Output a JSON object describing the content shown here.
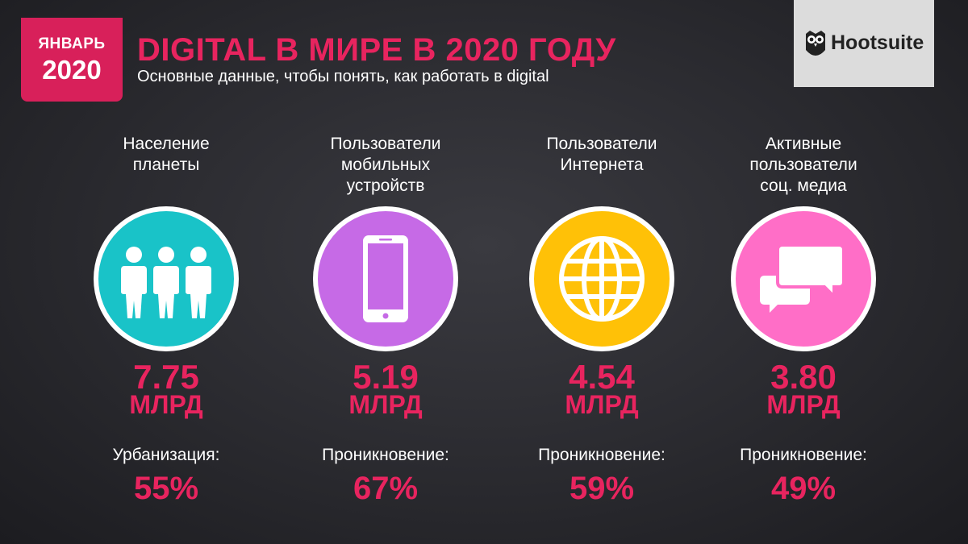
{
  "header": {
    "month": "ЯНВАРЬ",
    "year": "2020",
    "title": "DIGITAL В МИРЕ В 2020 ГОДУ",
    "subtitle": "Основные данные, чтобы понять, как работать в digital",
    "logo_text": "Hootsuite"
  },
  "colors": {
    "accent": "#e8245f",
    "badge": "#d8205a",
    "population": "#19c3c8",
    "mobile": "#c66ae6",
    "internet": "#ffc107",
    "social": "#ff6ec7"
  },
  "stats": [
    {
      "label": "Население\nпланеты",
      "icon": "people-icon",
      "value": "7.75",
      "unit": "МЛРД",
      "sublabel": "Урбанизация:",
      "subvalue": "55%"
    },
    {
      "label": "Пользователи\nмобильных\nустройств",
      "icon": "smartphone-icon",
      "value": "5.19",
      "unit": "МЛРД",
      "sublabel": "Проникновение:",
      "subvalue": "67%"
    },
    {
      "label": "Пользователи\nИнтернета",
      "icon": "globe-icon",
      "value": "4.54",
      "unit": "МЛРД",
      "sublabel": "Проникновение:",
      "subvalue": "59%"
    },
    {
      "label": "Активные\nпользователи\nсоц. медиа",
      "icon": "chat-bubbles-icon",
      "value": "3.80",
      "unit": "МЛРД",
      "sublabel": "Проникновение:",
      "subvalue": "49%"
    }
  ]
}
